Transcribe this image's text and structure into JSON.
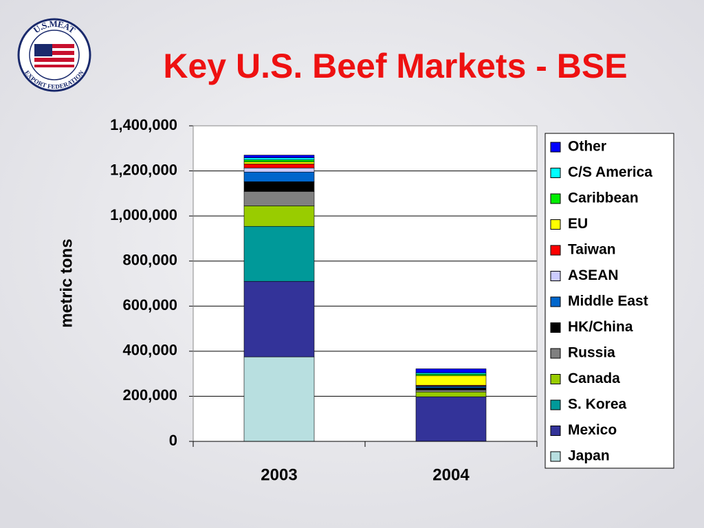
{
  "logo": {
    "top": "U.S.MEAT",
    "bottom": "EXPORT FEDERATION"
  },
  "chart_data": {
    "type": "stacked-bar",
    "title": "Key U.S. Beef Markets - BSE",
    "y_label": "metric tons",
    "categories": [
      "2003",
      "2004"
    ],
    "series": [
      {
        "name": "Japan",
        "color": "#b8dfe0",
        "values": [
          375000,
          0
        ]
      },
      {
        "name": "Mexico",
        "color": "#333399",
        "values": [
          335000,
          198000
        ]
      },
      {
        "name": "S. Korea",
        "color": "#009999",
        "values": [
          244000,
          0
        ]
      },
      {
        "name": "Canada",
        "color": "#99cc00",
        "values": [
          91000,
          21000
        ]
      },
      {
        "name": "Russia",
        "color": "#808080",
        "values": [
          64000,
          9000
        ]
      },
      {
        "name": "HK/China",
        "color": "#000000",
        "values": [
          43000,
          9000
        ]
      },
      {
        "name": "Middle East",
        "color": "#0066cc",
        "values": [
          43000,
          6000
        ]
      },
      {
        "name": "ASEAN",
        "color": "#ccccff",
        "values": [
          18000,
          3000
        ]
      },
      {
        "name": "Taiwan",
        "color": "#ff0000",
        "values": [
          18000,
          3000
        ]
      },
      {
        "name": "EU",
        "color": "#ffff00",
        "values": [
          9000,
          43000
        ]
      },
      {
        "name": "Caribbean",
        "color": "#00ee00",
        "values": [
          9000,
          6000
        ]
      },
      {
        "name": "C/S America",
        "color": "#00ffff",
        "values": [
          9000,
          6000
        ]
      },
      {
        "name": "Other",
        "color": "#0000ff",
        "values": [
          12000,
          18000
        ]
      }
    ],
    "ylim": [
      0,
      1400000
    ],
    "yticks": [
      0,
      {
        "value": 200000,
        "label": "200,000"
      },
      {
        "value": 400000,
        "label": "400,000"
      },
      {
        "value": 600000,
        "label": "600,000"
      },
      {
        "value": 800000,
        "label": "800,000"
      },
      {
        "value": 1000000,
        "label": "1,000,000"
      },
      {
        "value": 1200000,
        "label": "1,200,000"
      },
      {
        "value": 1400000,
        "label": "1,400,000"
      }
    ],
    "grid": true,
    "legend_position": "right"
  }
}
